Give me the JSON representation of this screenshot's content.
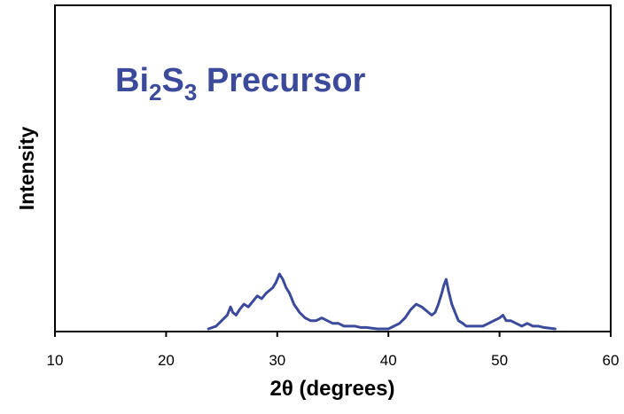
{
  "chart_data": {
    "type": "line",
    "title": {
      "prefix": "Bi",
      "sub1": "2",
      "mid": "S",
      "sub2": "3",
      "suffix": " Precursor"
    },
    "xlabel": "2θ (degrees)",
    "ylabel": "Intensity",
    "xlim": [
      10,
      60
    ],
    "ylim": [
      0,
      100
    ],
    "xticks": [
      10,
      20,
      30,
      40,
      50,
      60
    ],
    "grid": false,
    "y_tick_labels_shown": false,
    "colors": {
      "series": "#3b4a9a",
      "title": "#3b4a9a",
      "axes": "#000000"
    },
    "series": [
      {
        "x": [
          23.8,
          24.5,
          25.0,
          25.5,
          25.8,
          26.0,
          26.3,
          26.6,
          27.0,
          27.4,
          27.8,
          28.2,
          28.6,
          29.0,
          29.3,
          29.6,
          29.9,
          30.2,
          30.5,
          30.8,
          31.1,
          31.5,
          32.0,
          32.5,
          33.0,
          33.5,
          34.0,
          34.5,
          35.0,
          35.5,
          36.0,
          36.5,
          37.0,
          37.5,
          38.0,
          39.0,
          40.0,
          40.5,
          41.0,
          41.5,
          42.0,
          42.5,
          43.0,
          43.3,
          43.6,
          43.9,
          44.2,
          44.5,
          44.8,
          45.0,
          45.2,
          45.4,
          45.7,
          46.0,
          46.3,
          46.7,
          47.0,
          47.5,
          48.0,
          48.5,
          49.0,
          49.5,
          50.0,
          50.3,
          50.6,
          51.0,
          51.5,
          52.0,
          52.5,
          53.0,
          53.5,
          54.0,
          55.0
        ],
        "y": [
          0,
          1,
          3,
          5,
          8,
          6,
          5,
          7,
          9,
          8,
          10,
          12,
          11,
          13,
          14,
          15,
          17,
          20,
          18,
          15,
          13,
          9,
          6,
          4,
          3,
          3,
          4,
          3,
          2,
          2,
          1,
          1,
          1,
          0.5,
          0.5,
          0,
          0,
          1,
          2,
          4,
          7,
          9,
          8,
          7,
          6,
          5,
          6,
          9,
          13,
          16,
          18,
          14,
          9,
          6,
          3,
          2,
          1,
          1,
          1,
          1,
          2,
          3,
          4,
          5,
          3,
          3,
          2,
          1,
          2,
          1,
          1,
          0.5,
          0
        ]
      }
    ]
  }
}
